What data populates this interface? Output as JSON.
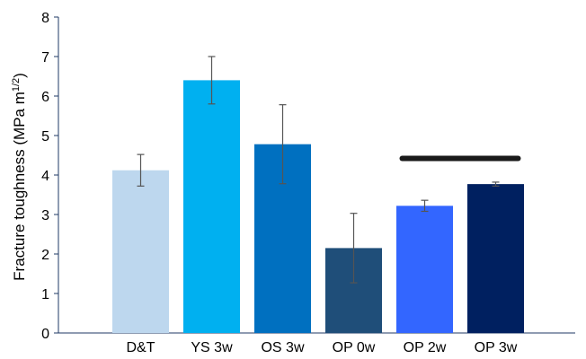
{
  "chart_data": {
    "type": "bar",
    "categories": [
      "D&T",
      "YS 3w",
      "OS 3w",
      "OP 0w",
      "OP 2w",
      "OP 3w"
    ],
    "values": [
      4.12,
      6.4,
      4.78,
      2.15,
      3.22,
      3.77
    ],
    "error": [
      0.4,
      0.6,
      1.0,
      0.88,
      0.14,
      0.05
    ],
    "colors": [
      "#BDD7EE",
      "#00B0F0",
      "#0070C0",
      "#1F4E79",
      "#3366FF",
      "#002060"
    ],
    "xlabel": "",
    "ylabel": "Fracture toughness (MPa m1/2)",
    "ylabel_parts": {
      "main": "Fracture toughness (MPa m",
      "sup": "1/2",
      "end": ")"
    },
    "ylim": [
      0,
      8
    ],
    "yticks": [
      "0",
      "1",
      "2",
      "3",
      "4",
      "5",
      "6",
      "7",
      "8"
    ],
    "grid": false,
    "legend": "none",
    "annotation": {
      "type": "significance-bar",
      "from": "OP 2w",
      "to": "OP 3w",
      "y": 4.42,
      "color": "#1a1a1a"
    }
  }
}
